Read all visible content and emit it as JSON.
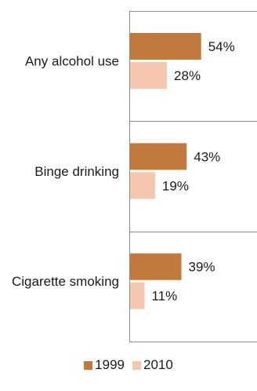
{
  "chart_data": {
    "type": "bar",
    "orientation": "horizontal",
    "categories": [
      "Any alcohol use",
      "Binge drinking",
      "Cigarette smoking"
    ],
    "series": [
      {
        "name": "1999",
        "values": [
          54,
          43,
          39
        ],
        "labels": [
          "54%",
          "43%",
          "39%"
        ],
        "color": "#C27A3C"
      },
      {
        "name": "2010",
        "values": [
          28,
          19,
          11
        ],
        "labels": [
          "28%",
          "19%",
          "11%"
        ],
        "color": "#F5C7AE"
      }
    ],
    "xlim": [
      0,
      100
    ],
    "grid": false,
    "legend_position": "bottom"
  }
}
